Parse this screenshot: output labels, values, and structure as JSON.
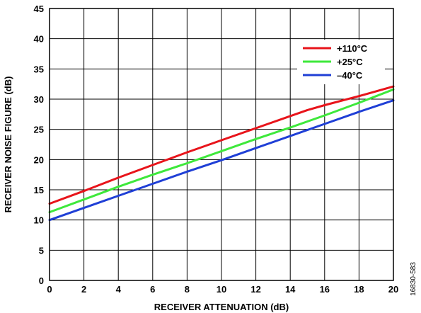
{
  "chart_data": {
    "type": "line",
    "title": "",
    "xlabel": "RECEIVER ATTENUATION (dB)",
    "ylabel": "RECEIVER NOISE FIGURE (dB)",
    "xlim": [
      0,
      20
    ],
    "ylim": [
      0,
      45
    ],
    "xticks": [
      "0",
      "2",
      "4",
      "6",
      "8",
      "10",
      "12",
      "14",
      "16",
      "18",
      "20"
    ],
    "yticks": [
      "0",
      "5",
      "10",
      "15",
      "20",
      "25",
      "30",
      "35",
      "40",
      "45"
    ],
    "grid": true,
    "legend_position": "top-right",
    "series": [
      {
        "name": "+110°C",
        "color": "#e8141b",
        "x": [
          0,
          2,
          4,
          6,
          8,
          10,
          12,
          14,
          15,
          16,
          18,
          20
        ],
        "y": [
          12.7,
          14.8,
          17.0,
          19.1,
          21.2,
          23.2,
          25.2,
          27.2,
          28.2,
          29.0,
          30.5,
          32.1
        ]
      },
      {
        "name": "+25°C",
        "color": "#3ee83b",
        "x": [
          0,
          2,
          4,
          6,
          8,
          10,
          12,
          14,
          16,
          18,
          20
        ],
        "y": [
          11.3,
          13.4,
          15.5,
          17.5,
          19.4,
          21.4,
          23.4,
          25.3,
          27.3,
          29.4,
          31.6
        ]
      },
      {
        "name": "–40°C",
        "color": "#1f3fd6",
        "x": [
          0,
          2,
          4,
          6,
          8,
          10,
          12,
          14,
          16,
          18,
          20
        ],
        "y": [
          10.0,
          12.0,
          14.0,
          16.0,
          18.0,
          19.9,
          21.9,
          23.9,
          25.9,
          27.9,
          29.8
        ]
      }
    ]
  },
  "figure_id": "16830-583"
}
